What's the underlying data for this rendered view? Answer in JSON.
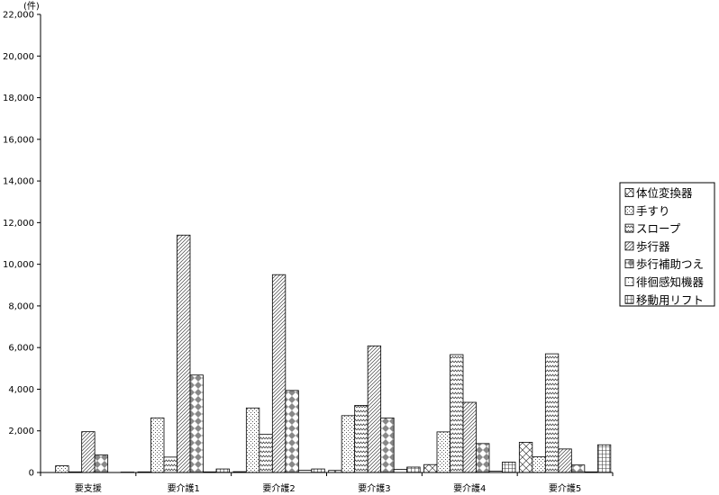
{
  "chart_data": {
    "type": "bar",
    "unit_label": "(件)",
    "categories": [
      "要支援",
      "要介護1",
      "要介護2",
      "要介護3",
      "要介護4",
      "要介護5"
    ],
    "series": [
      {
        "name": "体位変換器",
        "values": [
          0,
          30,
          40,
          100,
          380,
          1450
        ]
      },
      {
        "name": "手すり",
        "values": [
          320,
          2620,
          3100,
          2730,
          1950,
          750
        ]
      },
      {
        "name": "スロープ",
        "values": [
          30,
          740,
          1830,
          3220,
          5660,
          5700
        ]
      },
      {
        "name": "歩行器",
        "values": [
          1960,
          11400,
          9500,
          6080,
          3370,
          1130
        ]
      },
      {
        "name": "歩行補助つえ",
        "values": [
          840,
          4680,
          3940,
          2620,
          1390,
          360
        ]
      },
      {
        "name": "徘徊感知機器",
        "values": [
          0,
          30,
          110,
          150,
          60,
          30
        ]
      },
      {
        "name": "移動用リフト",
        "values": [
          20,
          170,
          170,
          260,
          500,
          1330
        ]
      }
    ],
    "ylim": [
      0,
      22000
    ],
    "y_ticks": [
      "0",
      "2,000",
      "4,000",
      "6,000",
      "8,000",
      "10,000",
      "12,000",
      "14,000",
      "16,000",
      "18,000",
      "20,000",
      "22,000"
    ],
    "grid": false,
    "legend_position": "right",
    "title": "",
    "xlabel": "",
    "ylabel": ""
  }
}
